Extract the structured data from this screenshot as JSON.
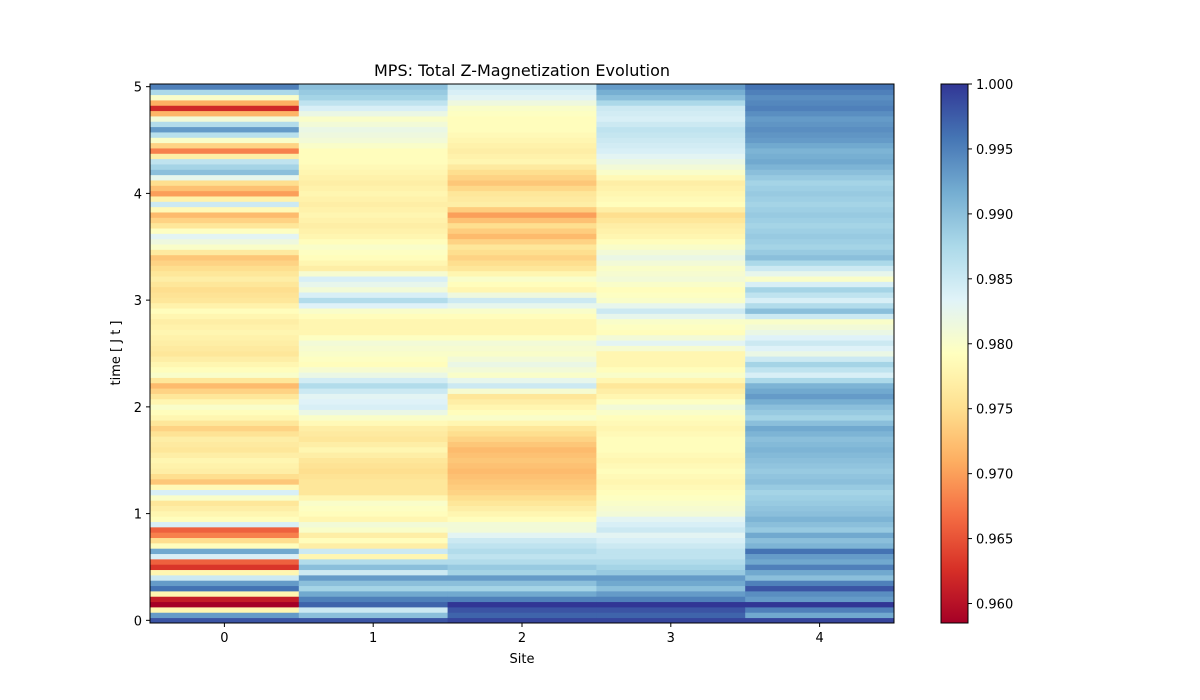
{
  "chart_data": {
    "type": "heatmap",
    "title": "MPS: Total Z-Magnetization Evolution",
    "xlabel": "Site",
    "ylabel": "time [ J t ]",
    "x_categories": [
      0,
      1,
      2,
      3,
      4
    ],
    "x_ticks": [
      "0",
      "1",
      "2",
      "3",
      "4"
    ],
    "xlim": [
      -0.5,
      4.5
    ],
    "ylim": [
      -0.025,
      5.025
    ],
    "y_ticks": [
      "0",
      "1",
      "2",
      "3",
      "4",
      "5"
    ],
    "y_tick_values": [
      0,
      1,
      2,
      3,
      4,
      5
    ],
    "time_step": 0.05,
    "times_start": 0,
    "n_times": 101,
    "colormap": "RdYlBu",
    "color_range": [
      0.9585,
      1.0
    ],
    "colorbar_ticks": [
      "0.960",
      "0.965",
      "0.970",
      "0.975",
      "0.980",
      "0.985",
      "0.990",
      "0.995",
      "1.000"
    ],
    "colorbar_tick_values": [
      0.96,
      0.965,
      0.97,
      0.975,
      0.98,
      0.985,
      0.99,
      0.995,
      1.0
    ],
    "control_points": {
      "t": [
        0,
        0.05,
        0.1,
        0.15,
        0.2,
        0.25,
        0.3,
        0.35,
        0.4,
        0.45,
        0.5,
        0.55,
        0.6,
        0.65,
        0.7,
        0.75,
        0.8,
        0.85,
        0.9,
        0.95,
        1.0,
        1.1,
        1.2,
        1.3,
        1.4,
        1.5,
        1.6,
        1.7,
        1.8,
        1.9,
        2.0,
        2.1,
        2.2,
        2.3,
        2.4,
        2.5,
        2.6,
        2.7,
        2.8,
        2.9,
        3.0,
        3.1,
        3.2,
        3.3,
        3.4,
        3.5,
        3.6,
        3.7,
        3.8,
        3.9,
        4.0,
        4.1,
        4.2,
        4.3,
        4.4,
        4.5,
        4.6,
        4.7,
        4.8,
        4.9,
        5.0
      ],
      "site_values": [
        [
          0.998,
          0.993,
          0.978,
          0.9585,
          0.961,
          0.978,
          0.996,
          0.993,
          0.985,
          0.978,
          0.963,
          0.966,
          0.984,
          0.992,
          0.979,
          0.975,
          0.968,
          0.966,
          0.984,
          0.979,
          0.978,
          0.976,
          0.984,
          0.973,
          0.977,
          0.978,
          0.976,
          0.977,
          0.974,
          0.978,
          0.98,
          0.976,
          0.972,
          0.98,
          0.978,
          0.976,
          0.977,
          0.978,
          0.977,
          0.979,
          0.976,
          0.975,
          0.977,
          0.975,
          0.973,
          0.98,
          0.983,
          0.976,
          0.972,
          0.985,
          0.97,
          0.975,
          0.99,
          0.986,
          0.968,
          0.98,
          0.993,
          0.981,
          0.962,
          0.98,
          0.995
        ],
        [
          0.998,
          0.99,
          0.985,
          0.997,
          0.995,
          0.992,
          0.988,
          0.99,
          0.993,
          0.985,
          0.99,
          0.987,
          0.978,
          0.985,
          0.977,
          0.979,
          0.977,
          0.98,
          0.981,
          0.978,
          0.979,
          0.98,
          0.976,
          0.976,
          0.975,
          0.976,
          0.978,
          0.976,
          0.977,
          0.98,
          0.984,
          0.983,
          0.987,
          0.982,
          0.979,
          0.98,
          0.981,
          0.978,
          0.978,
          0.98,
          0.987,
          0.981,
          0.984,
          0.977,
          0.979,
          0.98,
          0.978,
          0.977,
          0.978,
          0.977,
          0.978,
          0.977,
          0.978,
          0.979,
          0.979,
          0.981,
          0.982,
          0.98,
          0.984,
          0.988,
          0.99
        ],
        [
          0.999,
          0.997,
          0.998,
          1.0,
          0.995,
          0.992,
          0.988,
          0.99,
          0.993,
          0.988,
          0.989,
          0.987,
          0.986,
          0.987,
          0.986,
          0.985,
          0.983,
          0.981,
          0.981,
          0.979,
          0.978,
          0.976,
          0.974,
          0.973,
          0.972,
          0.973,
          0.972,
          0.974,
          0.976,
          0.98,
          0.978,
          0.976,
          0.985,
          0.98,
          0.982,
          0.98,
          0.981,
          0.978,
          0.978,
          0.98,
          0.985,
          0.978,
          0.98,
          0.976,
          0.974,
          0.976,
          0.972,
          0.975,
          0.97,
          0.977,
          0.976,
          0.973,
          0.975,
          0.978,
          0.977,
          0.978,
          0.979,
          0.979,
          0.98,
          0.983,
          0.985
        ],
        [
          0.999,
          0.997,
          0.998,
          1.0,
          0.995,
          0.993,
          0.99,
          0.992,
          0.993,
          0.989,
          0.988,
          0.987,
          0.986,
          0.986,
          0.985,
          0.984,
          0.983,
          0.985,
          0.984,
          0.983,
          0.981,
          0.98,
          0.979,
          0.978,
          0.979,
          0.978,
          0.979,
          0.979,
          0.978,
          0.979,
          0.981,
          0.978,
          0.976,
          0.98,
          0.978,
          0.978,
          0.983,
          0.979,
          0.98,
          0.985,
          0.98,
          0.979,
          0.981,
          0.98,
          0.982,
          0.98,
          0.978,
          0.977,
          0.975,
          0.979,
          0.978,
          0.977,
          0.98,
          0.982,
          0.984,
          0.985,
          0.986,
          0.984,
          0.985,
          0.99,
          0.993
        ],
        [
          0.999,
          0.992,
          0.995,
          1.0,
          0.993,
          0.994,
          0.998,
          0.995,
          0.99,
          0.992,
          0.995,
          0.992,
          0.993,
          0.996,
          0.991,
          0.99,
          0.992,
          0.989,
          0.99,
          0.991,
          0.99,
          0.989,
          0.988,
          0.99,
          0.989,
          0.99,
          0.991,
          0.99,
          0.992,
          0.988,
          0.99,
          0.993,
          0.991,
          0.984,
          0.988,
          0.982,
          0.985,
          0.982,
          0.98,
          0.99,
          0.984,
          0.988,
          0.98,
          0.985,
          0.99,
          0.988,
          0.989,
          0.988,
          0.989,
          0.988,
          0.989,
          0.988,
          0.99,
          0.992,
          0.991,
          0.993,
          0.994,
          0.993,
          0.995,
          0.994,
          0.996
        ]
      ]
    }
  }
}
